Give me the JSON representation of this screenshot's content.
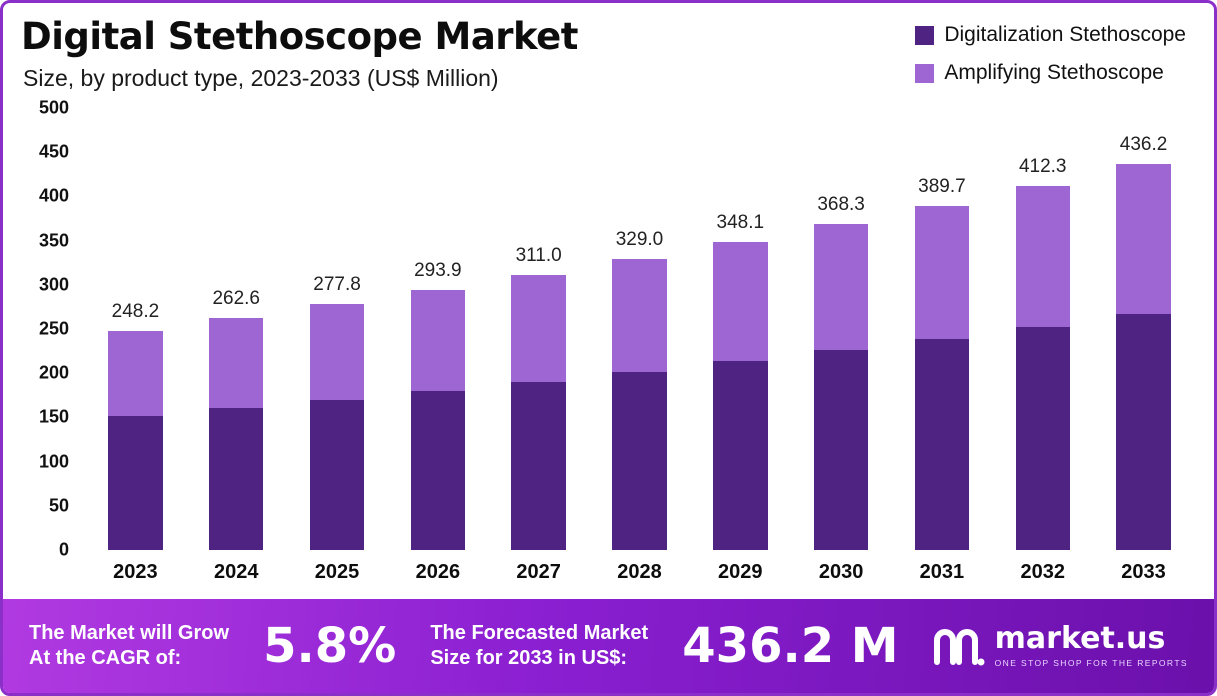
{
  "header": {
    "title": "Digital Stethoscope Market",
    "subtitle": "Size, by product type, 2023-2033 (US$ Million)"
  },
  "legend": [
    {
      "label": "Digitalization Stethoscope",
      "color": "#4e2382"
    },
    {
      "label": "Amplifying Stethoscope",
      "color": "#9e66d3"
    }
  ],
  "chart_data": {
    "type": "bar",
    "stacked": true,
    "title": "Digital Stethoscope Market Size, by product type, 2023-2033 (US$ Million)",
    "categories": [
      "2023",
      "2024",
      "2025",
      "2026",
      "2027",
      "2028",
      "2029",
      "2030",
      "2031",
      "2032",
      "2033"
    ],
    "series": [
      {
        "name": "Digitalization Stethoscope",
        "color": "#4e2382",
        "values": [
          152.1,
          160.9,
          170.2,
          180.1,
          190.5,
          201.6,
          213.3,
          225.7,
          238.8,
          252.7,
          267.3
        ]
      },
      {
        "name": "Amplifying Stethoscope",
        "color": "#9e66d3",
        "values": [
          96.1,
          101.7,
          107.6,
          113.8,
          120.5,
          127.4,
          134.8,
          142.6,
          150.9,
          159.6,
          168.9
        ]
      }
    ],
    "totals": [
      248.2,
      262.6,
      277.8,
      293.9,
      311.0,
      329.0,
      348.1,
      368.3,
      389.7,
      412.3,
      436.2
    ],
    "total_labels": [
      "248.2",
      "262.6",
      "277.8",
      "293.9",
      "311.0",
      "329.0",
      "348.1",
      "368.3",
      "389.7",
      "412.3",
      "436.2"
    ],
    "xlabel": "",
    "ylabel": "US$ Million",
    "ylim": [
      0,
      500
    ],
    "yticks": [
      0,
      50,
      100,
      150,
      200,
      250,
      300,
      350,
      400,
      450,
      500
    ],
    "grid": false,
    "legend_position": "top-right"
  },
  "footer": {
    "cagr_caption_line1": "The Market will Grow",
    "cagr_caption_line2": "At the CAGR of:",
    "cagr_value": "5.8%",
    "forecast_caption_line1": "The Forecasted Market",
    "forecast_caption_line2": "Size for 2033 in US$:",
    "forecast_value": "436.2 M",
    "logo_name": "market.us",
    "logo_tagline": "ONE STOP SHOP FOR THE REPORTS"
  }
}
